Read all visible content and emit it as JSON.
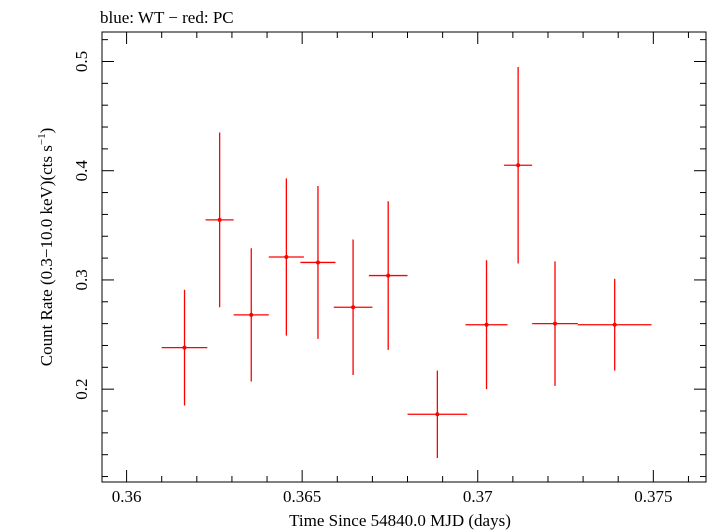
{
  "chart_data": {
    "type": "scatter",
    "title": "blue: WT − red: PC",
    "xlabel": "Time Since 54840.0 MJD (days)",
    "ylabel_main": "Count Rate (0.3−10.0 keV)(cts s",
    "ylabel_sup": "−1",
    "ylabel_close": ")",
    "xlim": [
      0.3593,
      0.3765
    ],
    "ylim": [
      0.115,
      0.527
    ],
    "x_ticks": [
      {
        "value": 0.36,
        "label": "0.36"
      },
      {
        "value": 0.365,
        "label": "0.365"
      },
      {
        "value": 0.37,
        "label": "0.37"
      },
      {
        "value": 0.375,
        "label": "0.375"
      }
    ],
    "y_ticks": [
      {
        "value": 0.2,
        "label": "0.2"
      },
      {
        "value": 0.3,
        "label": "0.3"
      },
      {
        "value": 0.4,
        "label": "0.4"
      },
      {
        "value": 0.5,
        "label": "0.5"
      }
    ],
    "series": [
      {
        "name": "PC",
        "color": "#ff0000",
        "points": [
          {
            "x": 0.36165,
            "xerr": 0.00065,
            "y": 0.238,
            "yerr": 0.053
          },
          {
            "x": 0.36265,
            "xerr": 0.0004,
            "y": 0.355,
            "yerr": 0.08
          },
          {
            "x": 0.36355,
            "xerr": 0.0005,
            "y": 0.268,
            "yerr": 0.061
          },
          {
            "x": 0.36455,
            "xerr": 0.0005,
            "y": 0.321,
            "yerr": 0.072
          },
          {
            "x": 0.36545,
            "xerr": 0.0005,
            "y": 0.316,
            "yerr": 0.07
          },
          {
            "x": 0.36645,
            "xerr": 0.00055,
            "y": 0.275,
            "yerr": 0.062
          },
          {
            "x": 0.36745,
            "xerr": 0.00055,
            "y": 0.304,
            "yerr": 0.068
          },
          {
            "x": 0.36885,
            "xerr": 0.00085,
            "y": 0.177,
            "yerr": 0.04
          },
          {
            "x": 0.37025,
            "xerr": 0.0006,
            "y": 0.259,
            "yerr": 0.059
          },
          {
            "x": 0.37115,
            "xerr": 0.0004,
            "y": 0.405,
            "yerr": 0.09
          },
          {
            "x": 0.3722,
            "xerr": 0.00065,
            "y": 0.26,
            "yerr": 0.057
          },
          {
            "x": 0.3739,
            "xerr": 0.00105,
            "y": 0.259,
            "yerr": 0.042
          }
        ]
      }
    ]
  }
}
